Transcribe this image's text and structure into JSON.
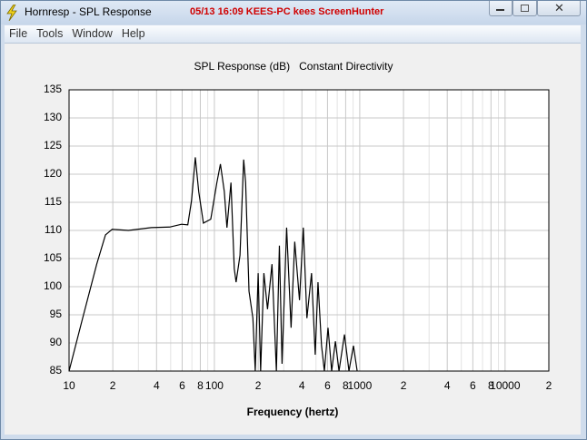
{
  "window": {
    "title": "Hornresp - SPL Response",
    "overlay": "05/13 16:09 KEES-PC kees ScreenHunter"
  },
  "menu": [
    "File",
    "Tools",
    "Window",
    "Help"
  ],
  "chart_data": {
    "type": "line",
    "title": "SPL Response (dB)   Constant Directivity",
    "x_label": "Frequency (hertz)",
    "x_scale": "log",
    "grid": true,
    "color": "#000000",
    "xlim": [
      10,
      20000
    ],
    "ylim": [
      85,
      135
    ],
    "xticks": [
      10,
      {
        "value": 20,
        "label": "2"
      },
      {
        "value": 40,
        "label": "4"
      },
      {
        "value": 60,
        "label": "6"
      },
      {
        "value": 80,
        "label": "8"
      },
      100,
      {
        "value": 200,
        "label": "2"
      },
      {
        "value": 400,
        "label": "4"
      },
      {
        "value": 600,
        "label": "6"
      },
      {
        "value": 800,
        "label": "8"
      },
      1000,
      {
        "value": 2000,
        "label": "2"
      },
      {
        "value": 4000,
        "label": "4"
      },
      {
        "value": 6000,
        "label": "6"
      },
      {
        "value": 8000,
        "label": "8"
      },
      10000,
      {
        "value": 20000,
        "label": "2"
      }
    ],
    "x_minor_grid": [
      30,
      50,
      70,
      90,
      300,
      500,
      700,
      900,
      3000,
      5000,
      7000,
      9000
    ],
    "yticks": [
      85,
      90,
      95,
      100,
      105,
      110,
      115,
      120,
      125,
      130,
      135
    ],
    "x": [
      10,
      12.4,
      15.5,
      17.8,
      19.8,
      25.6,
      36.8,
      49.2,
      59.4,
      65.6,
      69.6,
      73.9,
      78,
      84,
      94.4,
      104,
      110,
      117,
      122,
      130,
      137,
      141,
      150,
      159,
      164,
      173,
      184,
      191,
      200,
      208,
      219,
      232,
      249,
      267,
      280,
      292,
      314,
      337,
      357,
      385,
      409,
      433,
      466,
      494,
      516,
      546,
      571,
      605,
      641,
      680,
      720,
      785,
      843,
      905,
      960
    ],
    "values": [
      85,
      94.4,
      104,
      109.2,
      110.2,
      110,
      110.5,
      110.6,
      111.1,
      111,
      115.3,
      123,
      116.9,
      111.3,
      112,
      118.5,
      121.8,
      116.9,
      110.5,
      118.5,
      103.2,
      100.8,
      105.6,
      122.6,
      118.5,
      99.2,
      94.4,
      85,
      102.4,
      85,
      102.4,
      96,
      104,
      85,
      107.3,
      86.3,
      110.5,
      92.7,
      108,
      97.6,
      110.5,
      94.4,
      102.4,
      87.9,
      100.8,
      89.5,
      85,
      92.7,
      85,
      90.3,
      85,
      91.5,
      85,
      89.5,
      85
    ]
  }
}
